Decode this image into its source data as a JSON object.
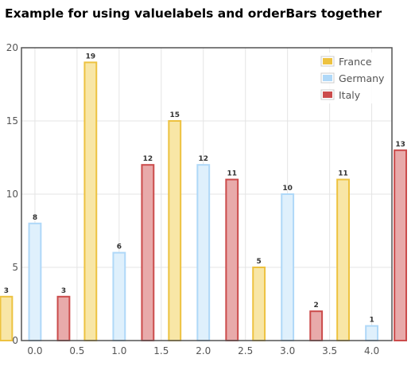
{
  "page_title": "Example for using valuelabels and orderBars together",
  "chart_data": {
    "type": "bar",
    "title": "Example for using valuelabels and orderBars together",
    "x": [
      0,
      1,
      2,
      3,
      4
    ],
    "x_ticks": [
      "0.0",
      "0.5",
      "1.0",
      "1.5",
      "2.0",
      "2.5",
      "3.0",
      "3.5",
      "4.0"
    ],
    "x_tick_values": [
      0,
      0.5,
      1,
      1.5,
      2,
      2.5,
      3,
      3.5,
      4
    ],
    "y_ticks": [
      "0",
      "5",
      "10",
      "15",
      "20"
    ],
    "y_tick_values": [
      0,
      5,
      10,
      15,
      20
    ],
    "xlim": [
      -0.16,
      4.24
    ],
    "ylim": [
      0,
      20
    ],
    "xlabel": "",
    "ylabel": "",
    "grid": true,
    "legend_position": "top-right",
    "series": [
      {
        "name": "France",
        "values": [
          3,
          19,
          15,
          5,
          11
        ],
        "color": "#edc240",
        "fill": "#f8e6a6"
      },
      {
        "name": "Germany",
        "values": [
          8,
          6,
          12,
          10,
          1
        ],
        "color": "#afd8f8",
        "fill": "#dff0fc"
      },
      {
        "name": "Italy",
        "values": [
          3,
          12,
          11,
          2,
          13
        ],
        "color": "#cb4b4b",
        "fill": "#e8aaaa"
      }
    ]
  }
}
